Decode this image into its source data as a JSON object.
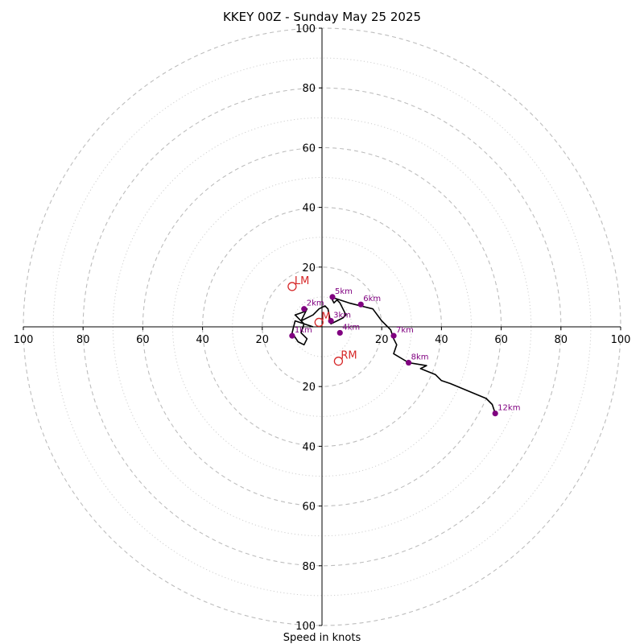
{
  "chart_data": {
    "type": "hodograph",
    "title": "KKEY 00Z - Sunday May 25 2025",
    "xlabel": "Speed in knots",
    "ring_labels": [
      "20",
      "40",
      "60",
      "80",
      "100"
    ],
    "max_speed": 100,
    "rings_dashed": [
      20,
      40,
      60,
      80,
      100
    ],
    "rings_dotted": [
      10,
      30,
      50,
      70,
      90
    ],
    "grid": true,
    "hodograph_trace": {
      "color": "#000000",
      "points": [
        [
          -3,
          0
        ],
        [
          -6,
          1
        ],
        [
          -9,
          2
        ],
        [
          -10,
          -2
        ],
        [
          -8,
          -5
        ],
        [
          -6,
          -6
        ],
        [
          -5,
          -4
        ],
        [
          -7,
          -2
        ],
        [
          -6,
          1
        ],
        [
          -8,
          3
        ],
        [
          -9,
          4
        ],
        [
          -6,
          5
        ],
        [
          -5,
          6
        ],
        [
          -7,
          2
        ],
        [
          -3,
          4
        ],
        [
          -1,
          6
        ],
        [
          1,
          7
        ],
        [
          2,
          6
        ],
        [
          3,
          1
        ],
        [
          5,
          2
        ],
        [
          7,
          3
        ],
        [
          8,
          4
        ],
        [
          7,
          6
        ],
        [
          6,
          8
        ],
        [
          5,
          9
        ],
        [
          4,
          8
        ],
        [
          3,
          10
        ],
        [
          6,
          9
        ],
        [
          9,
          8
        ],
        [
          11,
          7.5
        ],
        [
          13,
          7
        ],
        [
          17,
          6
        ],
        [
          20,
          2
        ],
        [
          23,
          -1
        ],
        [
          24,
          -4
        ],
        [
          25,
          -6
        ],
        [
          24,
          -9
        ],
        [
          29,
          -12
        ],
        [
          35,
          -13
        ],
        [
          33,
          -14
        ],
        [
          38,
          -16
        ],
        [
          40,
          -18
        ],
        [
          43,
          -19
        ],
        [
          55,
          -24
        ],
        [
          57,
          -26
        ],
        [
          58,
          -29
        ]
      ]
    },
    "height_markers": [
      {
        "label": "1km",
        "u": -10,
        "v": -3
      },
      {
        "label": "2km",
        "u": -6,
        "v": 6
      },
      {
        "label": "3km",
        "u": 3,
        "v": 2
      },
      {
        "label": "4km",
        "u": 6,
        "v": -2
      },
      {
        "label": "5km",
        "u": 3.5,
        "v": 10
      },
      {
        "label": "6km",
        "u": 13,
        "v": 7.5
      },
      {
        "label": "7km",
        "u": 24,
        "v": -3
      },
      {
        "label": "8km",
        "u": 29,
        "v": -12
      },
      {
        "label": "12km",
        "u": 58,
        "v": -29
      }
    ],
    "storm_motion": [
      {
        "label": "LM",
        "u": -10,
        "v": 13.5
      },
      {
        "label": "RM",
        "u": 5.5,
        "v": -11.5
      },
      {
        "label": "M",
        "u": -1,
        "v": 1.5
      }
    ],
    "storm_motion_color": "#d62728",
    "height_marker_color": "#800080"
  }
}
